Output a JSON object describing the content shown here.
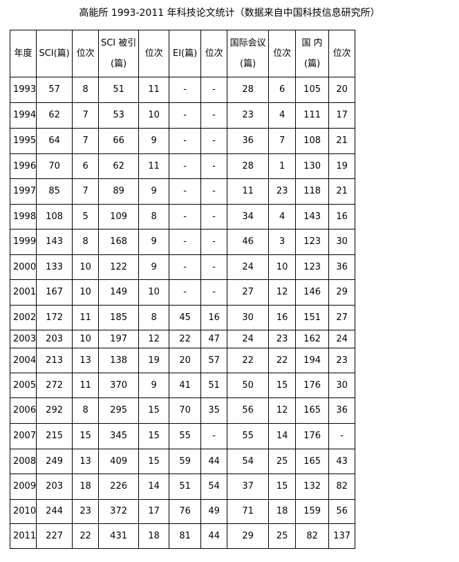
{
  "title": "高能所 1993-2011 年科技论文统计（数据来自中国科技信息研究所）",
  "headers": [
    [
      "年度"
    ],
    [
      "SCI(篇)"
    ],
    [
      "位次"
    ],
    [
      "SCI 被引",
      "(篇)"
    ],
    [
      "位次"
    ],
    [
      "EI(篇)"
    ],
    [
      "位次"
    ],
    [
      "国际会议",
      "(篇)"
    ],
    [
      "位次"
    ],
    [
      "国 内",
      "(篇)"
    ],
    [
      "位次"
    ]
  ],
  "rows": [
    [
      "1993",
      "57",
      "8",
      "51",
      "11",
      "-",
      "-",
      "28",
      "6",
      "105",
      "20"
    ],
    [
      "1994",
      "62",
      "7",
      "53",
      "10",
      "-",
      "-",
      "23",
      "4",
      "111",
      "17"
    ],
    [
      "1995",
      "64",
      "7",
      "66",
      "9",
      "-",
      "-",
      "36",
      "7",
      "108",
      "21"
    ],
    [
      "1996",
      "70",
      "6",
      "62",
      "11",
      "-",
      "-",
      "28",
      "1",
      "130",
      "19"
    ],
    [
      "1997",
      "85",
      "7",
      "89",
      "9",
      "-",
      "-",
      "11",
      "23",
      "118",
      "21"
    ],
    [
      "1998",
      "108",
      "5",
      "109",
      "8",
      "-",
      "-",
      "34",
      "4",
      "143",
      "16"
    ],
    [
      "1999",
      "143",
      "8",
      "168",
      "9",
      "-",
      "-",
      "46",
      "3",
      "123",
      "30"
    ],
    [
      "2000",
      "133",
      "10",
      "122",
      "9",
      "-",
      "-",
      "24",
      "10",
      "123",
      "36"
    ],
    [
      "2001",
      "167",
      "10",
      "149",
      "10",
      "-",
      "-",
      "27",
      "12",
      "146",
      "29"
    ],
    [
      "2002",
      "172",
      "11",
      "185",
      "8",
      "45",
      "16",
      "30",
      "16",
      "151",
      "27"
    ],
    [
      "2003",
      "203",
      "10",
      "197",
      "12",
      "22",
      "47",
      "24",
      "23",
      "162",
      "24"
    ],
    [
      "2004",
      "213",
      "13",
      "138",
      "19",
      "20",
      "57",
      "22",
      "22",
      "194",
      "23"
    ],
    [
      "2005",
      "272",
      "11",
      "370",
      "9",
      "41",
      "51",
      "50",
      "15",
      "176",
      "30"
    ],
    [
      "2006",
      "292",
      "8",
      "295",
      "15",
      "70",
      "35",
      "56",
      "12",
      "165",
      "36"
    ],
    [
      "2007",
      "215",
      "15",
      "345",
      "15",
      "55",
      "-",
      "55",
      "14",
      "176",
      "-"
    ],
    [
      "2008",
      "249",
      "13",
      "409",
      "15",
      "59",
      "44",
      "54",
      "25",
      "165",
      "43"
    ],
    [
      "2009",
      "203",
      "18",
      "226",
      "14",
      "51",
      "54",
      "37",
      "15",
      "132",
      "82"
    ],
    [
      "2010",
      "244",
      "23",
      "372",
      "17",
      "76",
      "49",
      "71",
      "18",
      "159",
      "56"
    ],
    [
      "2011",
      "227",
      "22",
      "431",
      "18",
      "81",
      "44",
      "29",
      "25",
      "82",
      "137"
    ]
  ]
}
